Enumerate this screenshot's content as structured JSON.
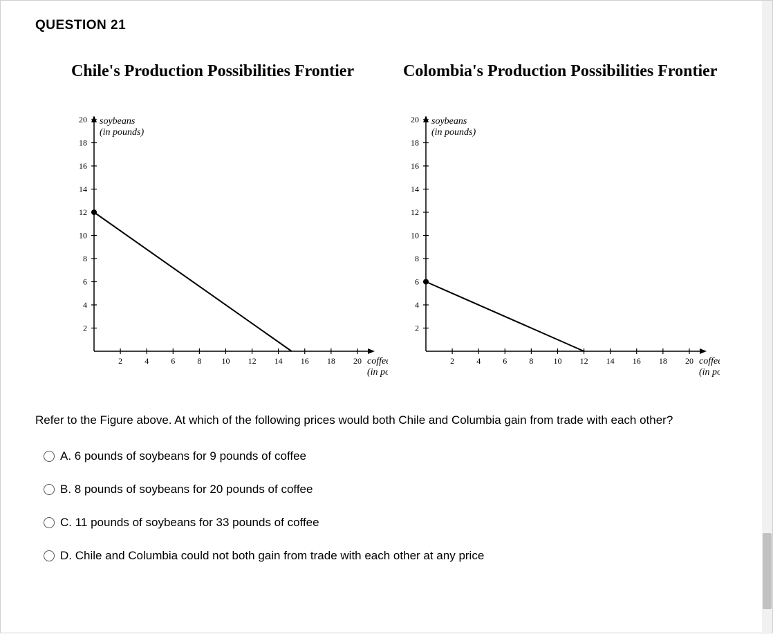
{
  "question_header": "QUESTION 21",
  "charts": {
    "chile": {
      "title": "Chile's Production Possibilities Frontier",
      "y_axis_label1": "soybeans",
      "y_axis_label2": "(in pounds)",
      "x_axis_label1": "coffee",
      "x_axis_label2": "(in pounds)",
      "y_ticks": [
        2,
        4,
        6,
        8,
        10,
        12,
        14,
        16,
        18,
        20
      ],
      "x_ticks": [
        2,
        4,
        6,
        8,
        10,
        12,
        14,
        16,
        18,
        20
      ],
      "y_lim": [
        0,
        20
      ],
      "x_lim": [
        0,
        21
      ],
      "line_start_y": 12,
      "line_end_x": 15,
      "dot_y": 12,
      "line_color": "#000000",
      "line_width": 2,
      "axis_color": "#000000",
      "tick_font_size": 12,
      "label_font_family": "Times New Roman",
      "background_color": "#ffffff"
    },
    "colombia": {
      "title": "Colombia's Production Possibilities Frontier",
      "y_axis_label1": "soybeans",
      "y_axis_label2": "(in pounds)",
      "x_axis_label1": "coffee",
      "x_axis_label2": "(in pounds)",
      "y_ticks": [
        2,
        4,
        6,
        8,
        10,
        12,
        14,
        16,
        18,
        20
      ],
      "x_ticks": [
        2,
        4,
        6,
        8,
        10,
        12,
        14,
        16,
        18,
        20
      ],
      "y_lim": [
        0,
        20
      ],
      "x_lim": [
        0,
        21
      ],
      "line_start_y": 6,
      "line_end_x": 12,
      "dot_y": 6,
      "line_color": "#000000",
      "line_width": 2,
      "axis_color": "#000000",
      "tick_font_size": 12,
      "label_font_family": "Times New Roman",
      "background_color": "#ffffff"
    }
  },
  "question_text": "Refer to the Figure above. At which of the following prices would both Chile and Columbia gain from trade with each other?",
  "options": {
    "a": "A. 6 pounds of soybeans for 9 pounds of coffee",
    "b": "B. 8 pounds of soybeans for 20 pounds of coffee",
    "c": "C. 11 pounds of soybeans for 33 pounds of coffee",
    "d": "D. Chile and Columbia could not both gain from trade with each other at any price"
  }
}
